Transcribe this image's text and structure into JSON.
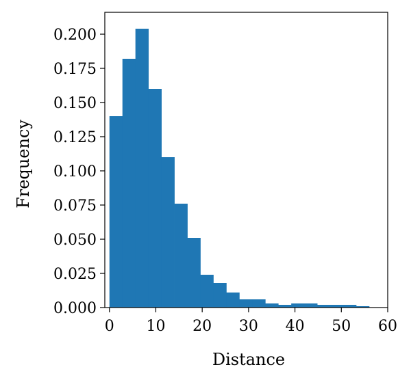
{
  "chart_data": {
    "type": "bar",
    "title": "",
    "xlabel": "Distance",
    "ylabel": "Frequency",
    "bar_color": "#1f77b4",
    "xlim": [
      -1,
      60
    ],
    "ylim": [
      0,
      0.2
    ],
    "xticks": [
      0,
      10,
      20,
      30,
      40,
      50,
      60
    ],
    "xtick_labels": [
      "0",
      "10",
      "20",
      "30",
      "40",
      "50",
      "60"
    ],
    "yticks": [
      0.0,
      0.025,
      0.05,
      0.075,
      0.1,
      0.125,
      0.15,
      0.175,
      0.2
    ],
    "ytick_labels": [
      "0.000",
      "0.025",
      "0.050",
      "0.075",
      "0.100",
      "0.125",
      "0.150",
      "0.175",
      "0.200"
    ],
    "bins": [
      {
        "x0": 0.0,
        "x1": 2.8,
        "value": 0.14
      },
      {
        "x0": 2.8,
        "x1": 5.6,
        "value": 0.182
      },
      {
        "x0": 5.6,
        "x1": 8.4,
        "value": 0.204
      },
      {
        "x0": 8.4,
        "x1": 11.2,
        "value": 0.16
      },
      {
        "x0": 11.2,
        "x1": 14.0,
        "value": 0.11
      },
      {
        "x0": 14.0,
        "x1": 16.8,
        "value": 0.076
      },
      {
        "x0": 16.8,
        "x1": 19.6,
        "value": 0.051
      },
      {
        "x0": 19.6,
        "x1": 22.4,
        "value": 0.024
      },
      {
        "x0": 22.4,
        "x1": 25.2,
        "value": 0.018
      },
      {
        "x0": 25.2,
        "x1": 28.0,
        "value": 0.011
      },
      {
        "x0": 28.0,
        "x1": 30.8,
        "value": 0.006
      },
      {
        "x0": 30.8,
        "x1": 33.6,
        "value": 0.006
      },
      {
        "x0": 33.6,
        "x1": 36.4,
        "value": 0.003
      },
      {
        "x0": 36.4,
        "x1": 39.2,
        "value": 0.002
      },
      {
        "x0": 39.2,
        "x1": 42.0,
        "value": 0.003
      },
      {
        "x0": 42.0,
        "x1": 44.8,
        "value": 0.003
      },
      {
        "x0": 44.8,
        "x1": 47.6,
        "value": 0.002
      },
      {
        "x0": 47.6,
        "x1": 50.4,
        "value": 0.002
      },
      {
        "x0": 50.4,
        "x1": 53.2,
        "value": 0.002
      },
      {
        "x0": 53.2,
        "x1": 56.0,
        "value": 0.001
      }
    ],
    "grid": false,
    "legend": "none"
  }
}
